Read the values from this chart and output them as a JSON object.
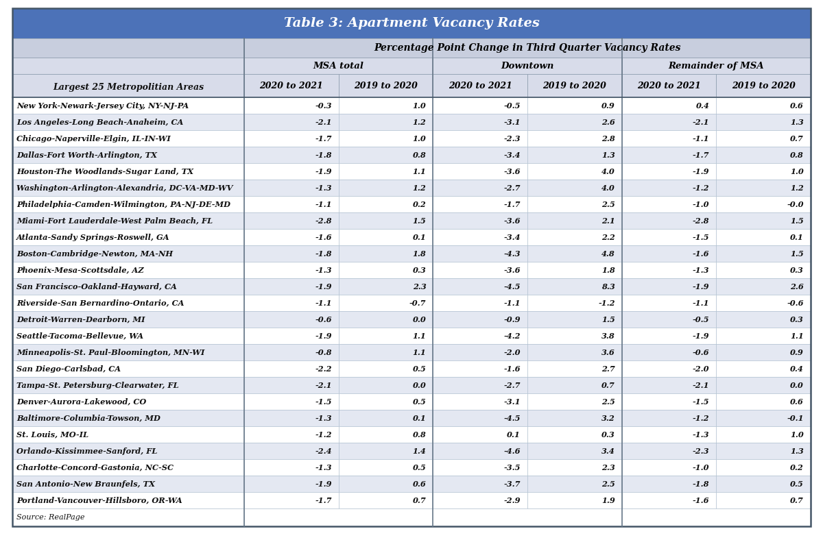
{
  "title": "Table 3: Apartment Vacancy Rates",
  "subtitle": "Percentage Point Change in Third Quarter Vacancy Rates",
  "col_groups": [
    "MSA total",
    "Downtown",
    "Remainder of MSA"
  ],
  "col_subheaders": [
    "2020 to 2021",
    "2019 to 2020",
    "2020 to 2021",
    "2019 to 2020",
    "2020 to 2021",
    "2019 to 2020"
  ],
  "row_header": "Largest 25 Metropolitian Areas",
  "rows": [
    [
      "New York-Newark-Jersey City, NY-NJ-PA",
      "-0.3",
      "1.0",
      "-0.5",
      "0.9",
      "0.4",
      "0.6"
    ],
    [
      "Los Angeles-Long Beach-Anaheim, CA",
      "-2.1",
      "1.2",
      "-3.1",
      "2.6",
      "-2.1",
      "1.3"
    ],
    [
      "Chicago-Naperville-Elgin, IL-IN-WI",
      "-1.7",
      "1.0",
      "-2.3",
      "2.8",
      "-1.1",
      "0.7"
    ],
    [
      "Dallas-Fort Worth-Arlington, TX",
      "-1.8",
      "0.8",
      "-3.4",
      "1.3",
      "-1.7",
      "0.8"
    ],
    [
      "Houston-The Woodlands-Sugar Land, TX",
      "-1.9",
      "1.1",
      "-3.6",
      "4.0",
      "-1.9",
      "1.0"
    ],
    [
      "Washington-Arlington-Alexandria, DC-VA-MD-WV",
      "-1.3",
      "1.2",
      "-2.7",
      "4.0",
      "-1.2",
      "1.2"
    ],
    [
      "Philadelphia-Camden-Wilmington, PA-NJ-DE-MD",
      "-1.1",
      "0.2",
      "-1.7",
      "2.5",
      "-1.0",
      "-0.0"
    ],
    [
      "Miami-Fort Lauderdale-West Palm Beach, FL",
      "-2.8",
      "1.5",
      "-3.6",
      "2.1",
      "-2.8",
      "1.5"
    ],
    [
      "Atlanta-Sandy Springs-Roswell, GA",
      "-1.6",
      "0.1",
      "-3.4",
      "2.2",
      "-1.5",
      "0.1"
    ],
    [
      "Boston-Cambridge-Newton, MA-NH",
      "-1.8",
      "1.8",
      "-4.3",
      "4.8",
      "-1.6",
      "1.5"
    ],
    [
      "Phoenix-Mesa-Scottsdale, AZ",
      "-1.3",
      "0.3",
      "-3.6",
      "1.8",
      "-1.3",
      "0.3"
    ],
    [
      "San Francisco-Oakland-Hayward, CA",
      "-1.9",
      "2.3",
      "-4.5",
      "8.3",
      "-1.9",
      "2.6"
    ],
    [
      "Riverside-San Bernardino-Ontario, CA",
      "-1.1",
      "-0.7",
      "-1.1",
      "-1.2",
      "-1.1",
      "-0.6"
    ],
    [
      "Detroit-Warren-Dearborn, MI",
      "-0.6",
      "0.0",
      "-0.9",
      "1.5",
      "-0.5",
      "0.3"
    ],
    [
      "Seattle-Tacoma-Bellevue, WA",
      "-1.9",
      "1.1",
      "-4.2",
      "3.8",
      "-1.9",
      "1.1"
    ],
    [
      "Minneapolis-St. Paul-Bloomington, MN-WI",
      "-0.8",
      "1.1",
      "-2.0",
      "3.6",
      "-0.6",
      "0.9"
    ],
    [
      "San Diego-Carlsbad, CA",
      "-2.2",
      "0.5",
      "-1.6",
      "2.7",
      "-2.0",
      "0.4"
    ],
    [
      "Tampa-St. Petersburg-Clearwater, FL",
      "-2.1",
      "0.0",
      "-2.7",
      "0.7",
      "-2.1",
      "0.0"
    ],
    [
      "Denver-Aurora-Lakewood, CO",
      "-1.5",
      "0.5",
      "-3.1",
      "2.5",
      "-1.5",
      "0.6"
    ],
    [
      "Baltimore-Columbia-Towson, MD",
      "-1.3",
      "0.1",
      "-4.5",
      "3.2",
      "-1.2",
      "-0.1"
    ],
    [
      "St. Louis, MO-IL",
      "-1.2",
      "0.8",
      "0.1",
      "0.3",
      "-1.3",
      "1.0"
    ],
    [
      "Orlando-Kissimmee-Sanford, FL",
      "-2.4",
      "1.4",
      "-4.6",
      "3.4",
      "-2.3",
      "1.3"
    ],
    [
      "Charlotte-Concord-Gastonia, NC-SC",
      "-1.3",
      "0.5",
      "-3.5",
      "2.3",
      "-1.0",
      "0.2"
    ],
    [
      "San Antonio-New Braunfels, TX",
      "-1.9",
      "0.6",
      "-3.7",
      "2.5",
      "-1.8",
      "0.5"
    ],
    [
      "Portland-Vancouver-Hillsboro, OR-WA",
      "-1.7",
      "0.7",
      "-2.9",
      "1.9",
      "-1.6",
      "0.7"
    ]
  ],
  "source": "Source: RealPage",
  "title_bg": "#4C72B8",
  "title_color": "#FFFFFF",
  "header_bg": "#C8CEDE",
  "subheader_bg": "#D8DCEA",
  "row_bg_white": "#FFFFFF",
  "row_bg_blue": "#E4E8F2",
  "border_dark": "#8899AA",
  "border_light": "#AABBCC",
  "text_color": "#111111",
  "title_fontsize": 14,
  "subtitle_fontsize": 10,
  "group_fontsize": 9.5,
  "subhdr_fontsize": 9,
  "row_fontsize": 8.2,
  "source_fontsize": 8
}
